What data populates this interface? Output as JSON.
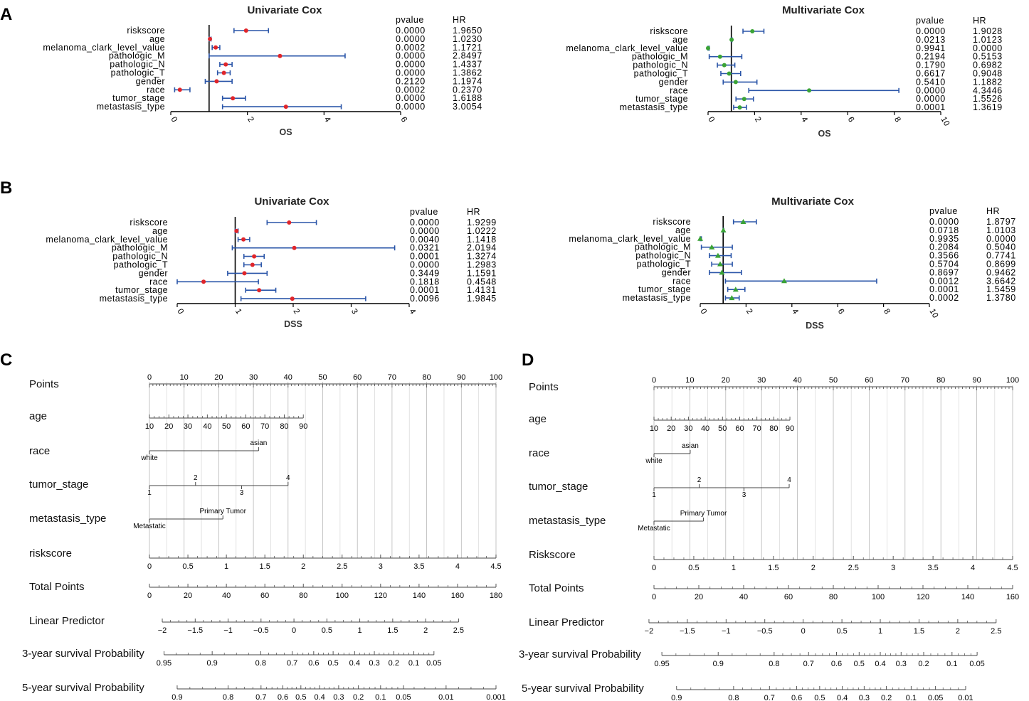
{
  "panels": [
    "A",
    "B",
    "C",
    "D"
  ],
  "chart_data": [
    {
      "type": "forest",
      "id": "A-uni",
      "panel": "A",
      "title": "Univariate Cox",
      "xlabel": "OS",
      "xlim": [
        0,
        6
      ],
      "ticks": [
        0,
        2,
        4,
        6
      ],
      "ref_line": 1,
      "marker": "circle",
      "color": "#e0252a",
      "col_headers": [
        "pvalue",
        "HR"
      ],
      "rows": [
        {
          "name": "riskscore",
          "pvalue": "0.0000",
          "hr": "1.9650",
          "v": 1.965,
          "lo": 1.65,
          "hi": 2.55
        },
        {
          "name": "age",
          "pvalue": "0.0000",
          "hr": "1.0230",
          "v": 1.023,
          "lo": 1.0,
          "hi": 1.05
        },
        {
          "name": "melanoma_clark_level_value",
          "pvalue": "0.0002",
          "hr": "1.1721",
          "v": 1.172,
          "lo": 1.08,
          "hi": 1.28
        },
        {
          "name": "pathologic_M",
          "pvalue": "0.0000",
          "hr": "2.8497",
          "v": 2.85,
          "lo": 1.0,
          "hi": 4.55
        },
        {
          "name": "pathologic_N",
          "pvalue": "0.0000",
          "hr": "1.4337",
          "v": 1.434,
          "lo": 1.28,
          "hi": 1.6
        },
        {
          "name": "pathologic_T",
          "pvalue": "0.0000",
          "hr": "1.3862",
          "v": 1.386,
          "lo": 1.22,
          "hi": 1.55
        },
        {
          "name": "gender",
          "pvalue": "0.2120",
          "hr": "1.1974",
          "v": 1.197,
          "lo": 0.9,
          "hi": 1.6
        },
        {
          "name": "race",
          "pvalue": "0.0002",
          "hr": "0.2370",
          "v": 0.237,
          "lo": 0.1,
          "hi": 0.5
        },
        {
          "name": "tumor_stage",
          "pvalue": "0.0000",
          "hr": "1.6188",
          "v": 1.619,
          "lo": 1.35,
          "hi": 1.95
        },
        {
          "name": "metastasis_type",
          "pvalue": "0.0000",
          "hr": "3.0054",
          "v": 3.005,
          "lo": 1.35,
          "hi": 4.45
        }
      ]
    },
    {
      "type": "forest",
      "id": "A-multi",
      "panel": "A",
      "title": "Multivariate Cox",
      "xlabel": "OS",
      "xlim": [
        0,
        10
      ],
      "ticks": [
        0,
        2,
        4,
        6,
        8,
        10
      ],
      "ref_line": 1,
      "marker": "circle",
      "color": "#3aa335",
      "col_headers": [
        "pvalue",
        "HR"
      ],
      "rows": [
        {
          "name": "riskscore",
          "pvalue": "0.0000",
          "hr": "1.9028",
          "v": 1.903,
          "lo": 1.5,
          "hi": 2.4
        },
        {
          "name": "age",
          "pvalue": "0.0213",
          "hr": "1.0123",
          "v": 1.012,
          "lo": 1.0,
          "hi": 1.03
        },
        {
          "name": "melanoma_clark_level_value",
          "pvalue": "0.9941",
          "hr": "0.0000",
          "v": 0.0,
          "lo": 0.0,
          "hi": 0.05
        },
        {
          "name": "pathologic_M",
          "pvalue": "0.2194",
          "hr": "0.5153",
          "v": 0.515,
          "lo": 0.05,
          "hi": 1.45
        },
        {
          "name": "pathologic_N",
          "pvalue": "0.1790",
          "hr": "0.6982",
          "v": 0.698,
          "lo": 0.4,
          "hi": 1.15
        },
        {
          "name": "pathologic_T",
          "pvalue": "0.6617",
          "hr": "0.9048",
          "v": 0.905,
          "lo": 0.55,
          "hi": 1.4
        },
        {
          "name": "gender",
          "pvalue": "0.5410",
          "hr": "1.1882",
          "v": 1.188,
          "lo": 0.65,
          "hi": 2.1
        },
        {
          "name": "race",
          "pvalue": "0.0000",
          "hr": "4.3446",
          "v": 4.345,
          "lo": 1.75,
          "hi": 8.2
        },
        {
          "name": "tumor_stage",
          "pvalue": "0.0000",
          "hr": "1.5526",
          "v": 1.553,
          "lo": 1.2,
          "hi": 1.95
        },
        {
          "name": "metastasis_type",
          "pvalue": "0.0001",
          "hr": "1.3619",
          "v": 1.362,
          "lo": 1.1,
          "hi": 1.65
        }
      ]
    },
    {
      "type": "forest",
      "id": "B-uni",
      "panel": "B",
      "title": "Univariate Cox",
      "xlabel": "DSS",
      "xlim": [
        0,
        4
      ],
      "ticks": [
        0,
        1,
        2,
        3,
        4
      ],
      "ref_line": 1,
      "marker": "circle",
      "color": "#e0252a",
      "col_headers": [
        "pvalue",
        "HR"
      ],
      "rows": [
        {
          "name": "riskscore",
          "pvalue": "0.0000",
          "hr": "1.9299",
          "v": 1.93,
          "lo": 1.55,
          "hi": 2.4
        },
        {
          "name": "age",
          "pvalue": "0.0000",
          "hr": "1.0222",
          "v": 1.022,
          "lo": 1.0,
          "hi": 1.05
        },
        {
          "name": "melanoma_clark_level_value",
          "pvalue": "0.0040",
          "hr": "1.1418",
          "v": 1.142,
          "lo": 1.05,
          "hi": 1.25
        },
        {
          "name": "pathologic_M",
          "pvalue": "0.0321",
          "hr": "2.0194",
          "v": 2.019,
          "lo": 0.95,
          "hi": 3.75
        },
        {
          "name": "pathologic_N",
          "pvalue": "0.0001",
          "hr": "1.3274",
          "v": 1.327,
          "lo": 1.15,
          "hi": 1.5
        },
        {
          "name": "pathologic_T",
          "pvalue": "0.0000",
          "hr": "1.2983",
          "v": 1.298,
          "lo": 1.15,
          "hi": 1.45
        },
        {
          "name": "gender",
          "pvalue": "0.3449",
          "hr": "1.1591",
          "v": 1.159,
          "lo": 0.87,
          "hi": 1.55
        },
        {
          "name": "race",
          "pvalue": "0.1818",
          "hr": "0.4548",
          "v": 0.455,
          "lo": 0.0,
          "hi": 1.4
        },
        {
          "name": "tumor_stage",
          "pvalue": "0.0001",
          "hr": "1.4131",
          "v": 1.413,
          "lo": 1.18,
          "hi": 1.7
        },
        {
          "name": "metastasis_type",
          "pvalue": "0.0096",
          "hr": "1.9845",
          "v": 1.985,
          "lo": 1.1,
          "hi": 3.25
        }
      ]
    },
    {
      "type": "forest",
      "id": "B-multi",
      "panel": "B",
      "title": "Multivariate Cox",
      "xlabel": "DSS",
      "xlim": [
        0,
        10
      ],
      "ticks": [
        0,
        2,
        4,
        6,
        8,
        10
      ],
      "ref_line": 1,
      "marker": "triangle",
      "color": "#3aa335",
      "col_headers": [
        "pvalue",
        "HR"
      ],
      "rows": [
        {
          "name": "riskscore",
          "pvalue": "0.0000",
          "hr": "1.8797",
          "v": 1.88,
          "lo": 1.45,
          "hi": 2.45
        },
        {
          "name": "age",
          "pvalue": "0.0718",
          "hr": "1.0103",
          "v": 1.01,
          "lo": 1.0,
          "hi": 1.03
        },
        {
          "name": "melanoma_clark_level_value",
          "pvalue": "0.9935",
          "hr": "0.0000",
          "v": 0.0,
          "lo": 0.0,
          "hi": 0.05
        },
        {
          "name": "pathologic_M",
          "pvalue": "0.2084",
          "hr": "0.5040",
          "v": 0.504,
          "lo": 0.05,
          "hi": 1.4
        },
        {
          "name": "pathologic_N",
          "pvalue": "0.3566",
          "hr": "0.7741",
          "v": 0.774,
          "lo": 0.4,
          "hi": 1.35
        },
        {
          "name": "pathologic_T",
          "pvalue": "0.5704",
          "hr": "0.8699",
          "v": 0.87,
          "lo": 0.5,
          "hi": 1.4
        },
        {
          "name": "gender",
          "pvalue": "0.8697",
          "hr": "0.9462",
          "v": 0.946,
          "lo": 0.4,
          "hi": 1.8
        },
        {
          "name": "race",
          "pvalue": "0.0012",
          "hr": "3.6642",
          "v": 3.664,
          "lo": 1.1,
          "hi": 7.7
        },
        {
          "name": "tumor_stage",
          "pvalue": "0.0001",
          "hr": "1.5459",
          "v": 1.546,
          "lo": 1.2,
          "hi": 1.95
        },
        {
          "name": "metastasis_type",
          "pvalue": "0.0002",
          "hr": "1.3780",
          "v": 1.378,
          "lo": 1.1,
          "hi": 1.7
        }
      ]
    },
    {
      "type": "nomogram",
      "id": "C-nomo",
      "panel": "C",
      "points_max": 100,
      "rows": [
        {
          "label": "Points",
          "kind": "points",
          "ticks": [
            "0",
            "10",
            "20",
            "30",
            "40",
            "50",
            "60",
            "70",
            "80",
            "90",
            "100"
          ],
          "tick_points": [
            0,
            10,
            20,
            30,
            40,
            50,
            60,
            70,
            80,
            90,
            100
          ]
        },
        {
          "label": "age",
          "kind": "scale",
          "ticks": [
            "10",
            "20",
            "30",
            "40",
            "50",
            "60",
            "70",
            "80",
            "90"
          ],
          "tick_points": [
            0,
            5.6,
            11.1,
            16.7,
            22.2,
            27.8,
            33.3,
            38.9,
            44.4
          ]
        },
        {
          "label": "race",
          "kind": "cat",
          "levels": [
            {
              "text": "asian",
              "points": 31.5,
              "side": "above"
            },
            {
              "text": "white",
              "points": 0,
              "side": "below"
            }
          ]
        },
        {
          "label": "tumor_stage",
          "kind": "cat",
          "levels": [
            {
              "text": "1",
              "points": 0,
              "side": "below"
            },
            {
              "text": "2",
              "points": 13.3,
              "side": "above"
            },
            {
              "text": "3",
              "points": 26.6,
              "side": "below"
            },
            {
              "text": "4",
              "points": 40,
              "side": "above"
            }
          ]
        },
        {
          "label": "metastasis_type",
          "kind": "cat",
          "levels": [
            {
              "text": "Primary Tumor",
              "points": 21.2,
              "side": "above"
            },
            {
              "text": "Metastatic",
              "points": 0,
              "side": "below"
            }
          ]
        },
        {
          "label": "riskscore",
          "kind": "scale",
          "ticks": [
            "0",
            "0.5",
            "1",
            "1.5",
            "2",
            "2.5",
            "3",
            "3.5",
            "4",
            "4.5"
          ],
          "tick_points": [
            0,
            11.1,
            22.2,
            33.3,
            44.4,
            55.6,
            66.7,
            77.8,
            88.9,
            100
          ]
        },
        {
          "label": "Total Points",
          "kind": "scale",
          "ticks": [
            "0",
            "20",
            "40",
            "60",
            "80",
            "100",
            "120",
            "140",
            "160",
            "180"
          ],
          "tick_points": [
            0,
            11.1,
            22.2,
            33.3,
            44.4,
            55.6,
            66.7,
            77.8,
            88.9,
            100
          ]
        },
        {
          "label": "Linear Predictor",
          "kind": "scale",
          "ticks": [
            "−2",
            "−1.5",
            "−1",
            "−0.5",
            "0",
            "0.5",
            "1",
            "1.5",
            "2",
            "2.5"
          ],
          "tick_points": [
            3.7,
            13.2,
            22.7,
            32.2,
            41.7,
            51.2,
            60.7,
            70.2,
            79.7,
            89.2
          ]
        },
        {
          "label": "3-year survival Probability",
          "kind": "scale",
          "ticks": [
            "0.95",
            "0.9",
            "0.8",
            "0.7",
            "0.6",
            "0.5",
            "0.4",
            "0.3",
            "0.2",
            "0.1",
            "0.05"
          ],
          "tick_points": [
            4.2,
            18.1,
            32.1,
            41.2,
            47.4,
            53,
            59.2,
            64.9,
            70.5,
            76.3,
            82.1
          ]
        },
        {
          "label": "5-year survival Probability",
          "kind": "scale",
          "ticks": [
            "0.9",
            "0.8",
            "0.7",
            "0.6",
            "0.5",
            "0.4",
            "0.3",
            "0.2",
            "0.1",
            "0.05",
            "0.01",
            "0.001"
          ],
          "tick_points": [
            8,
            22.7,
            32.2,
            38.5,
            43.7,
            49.1,
            54.6,
            60.3,
            66.7,
            73.3,
            85.6,
            100
          ]
        }
      ]
    },
    {
      "type": "nomogram",
      "id": "D-nomo",
      "panel": "D",
      "points_max": 100,
      "rows": [
        {
          "label": "Points",
          "kind": "points",
          "ticks": [
            "0",
            "10",
            "20",
            "30",
            "40",
            "50",
            "60",
            "70",
            "80",
            "90",
            "100"
          ],
          "tick_points": [
            0,
            10,
            20,
            30,
            40,
            50,
            60,
            70,
            80,
            90,
            100
          ]
        },
        {
          "label": "age",
          "kind": "scale",
          "ticks": [
            "10",
            "20",
            "30",
            "40",
            "50",
            "60",
            "70",
            "80",
            "90"
          ],
          "tick_points": [
            0,
            4.8,
            9.6,
            14.3,
            19.1,
            23.9,
            28.7,
            33.4,
            37.9
          ]
        },
        {
          "label": "race",
          "kind": "cat",
          "levels": [
            {
              "text": "asian",
              "points": 10.1,
              "side": "above"
            },
            {
              "text": "white",
              "points": 0,
              "side": "below"
            }
          ]
        },
        {
          "label": "tumor_stage",
          "kind": "cat",
          "levels": [
            {
              "text": "1",
              "points": 0,
              "side": "below"
            },
            {
              "text": "2",
              "points": 12.6,
              "side": "above"
            },
            {
              "text": "3",
              "points": 25.1,
              "side": "below"
            },
            {
              "text": "4",
              "points": 37.7,
              "side": "above"
            }
          ]
        },
        {
          "label": "metastasis_type",
          "kind": "cat",
          "levels": [
            {
              "text": "Primary Tumor",
              "points": 13.8,
              "side": "above"
            },
            {
              "text": "Metastatic",
              "points": 0,
              "side": "below"
            }
          ]
        },
        {
          "label": "Riskscore",
          "kind": "scale",
          "ticks": [
            "0",
            "0.5",
            "1",
            "1.5",
            "2",
            "2.5",
            "3",
            "3.5",
            "4",
            "4.5"
          ],
          "tick_points": [
            0,
            11.1,
            22.2,
            33.3,
            44.4,
            55.6,
            66.7,
            77.8,
            88.9,
            100
          ]
        },
        {
          "label": "Total Points",
          "kind": "scale",
          "ticks": [
            "0",
            "20",
            "40",
            "60",
            "80",
            "100",
            "120",
            "140",
            "160"
          ],
          "tick_points": [
            0,
            12.5,
            25,
            37.5,
            50,
            62.5,
            75,
            87.5,
            100
          ]
        },
        {
          "label": "Linear Predictor",
          "kind": "scale",
          "ticks": [
            "−2",
            "−1.5",
            "−1",
            "−0.5",
            "0",
            "0.5",
            "1",
            "1.5",
            "2",
            "2.5"
          ],
          "tick_points": [
            -1.4,
            9.3,
            20.1,
            30.9,
            41.6,
            52.4,
            63.1,
            73.9,
            84.7,
            95.4
          ]
        },
        {
          "label": "3-year survival Probability",
          "kind": "scale",
          "ticks": [
            "0.95",
            "0.9",
            "0.8",
            "0.7",
            "0.6",
            "0.5",
            "0.4",
            "0.3",
            "0.2",
            "0.1",
            "0.05"
          ],
          "tick_points": [
            2.2,
            17.9,
            33.5,
            43.1,
            50.9,
            57.2,
            63.1,
            68.9,
            75.2,
            83.1,
            90.1
          ]
        },
        {
          "label": "5-year survival Probability",
          "kind": "scale",
          "ticks": [
            "0.9",
            "0.8",
            "0.7",
            "0.6",
            "0.5",
            "0.4",
            "0.3",
            "0.2",
            "0.1",
            "0.05",
            "0.01"
          ],
          "tick_points": [
            6.3,
            22.2,
            32.2,
            39.8,
            46.2,
            52.5,
            58.6,
            64.8,
            71.7,
            78.5,
            86.9
          ]
        }
      ]
    }
  ]
}
